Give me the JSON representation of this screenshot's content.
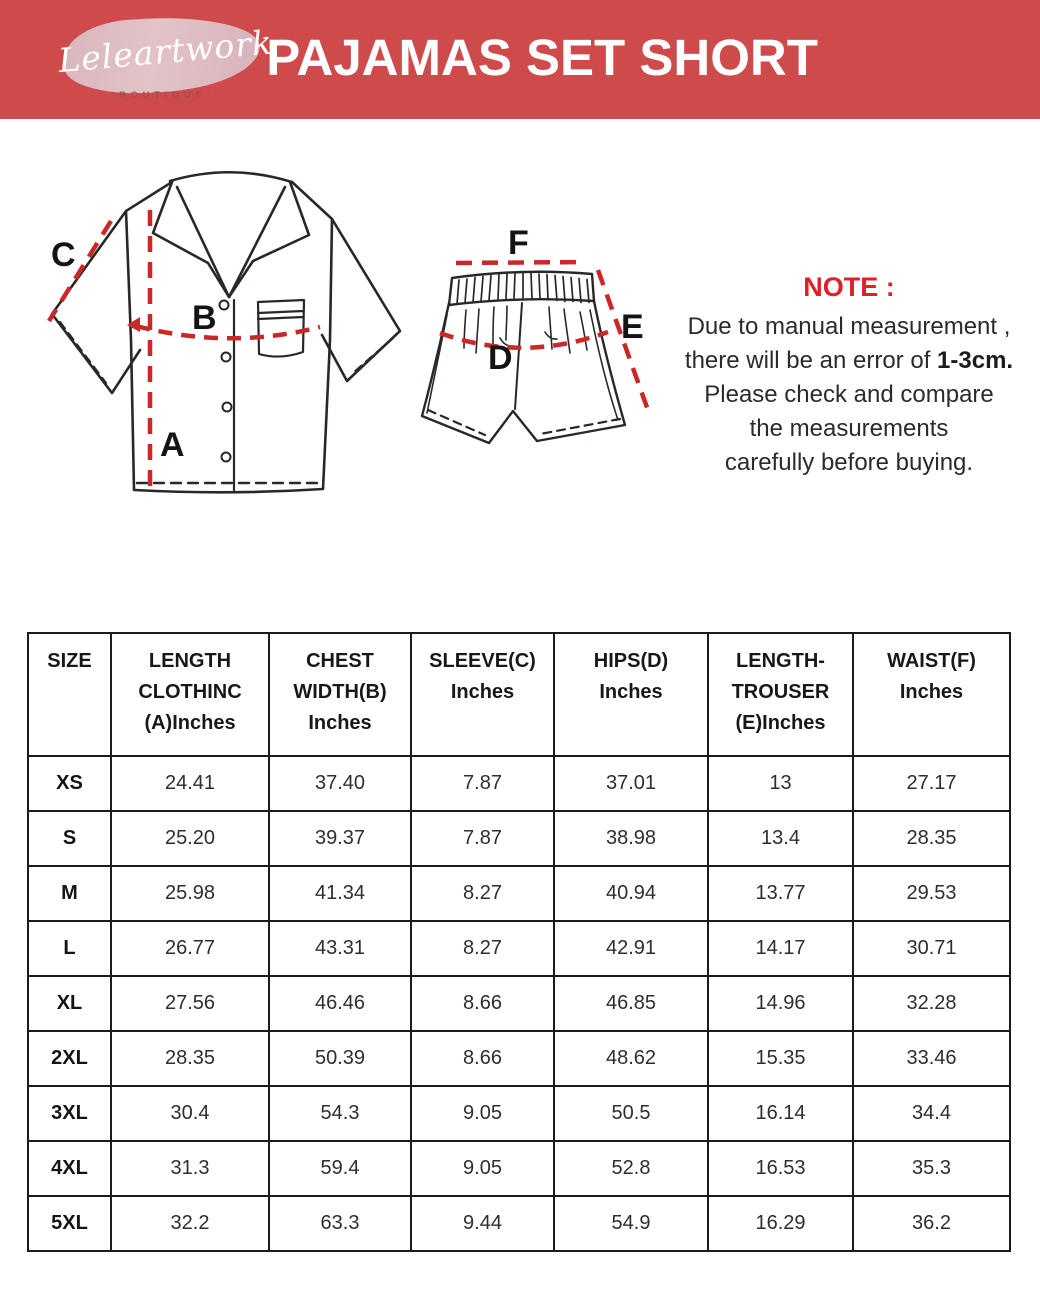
{
  "header": {
    "logo": {
      "name": "Leleartwork",
      "subtitle": "· BOUTIQUE ·"
    },
    "title": "PAJAMAS SET SHORT"
  },
  "colors": {
    "banner_red": "#cf4b4b",
    "note_red": "#e01f26",
    "dash_red": "#cc2727",
    "logo_blob_pink": "#ddc4cb",
    "table_border": "#1b1b1b"
  },
  "diagram": {
    "labels": {
      "A": "A",
      "B": "B",
      "C": "C",
      "D": "D",
      "E": "E",
      "F": "F"
    }
  },
  "note": {
    "heading": "NOTE :",
    "line1": "Due to manual measurement ,",
    "line2_normal": "there will be an error of ",
    "line2_bold": "1-3cm.",
    "line3": "Please check and compare",
    "line4": "the measurements",
    "line5": "carefully before buying."
  },
  "table": {
    "columns": [
      "SIZE",
      "LENGTH\nCLOTHINC\n(A)Inches",
      "CHEST\nWIDTH(B)\nInches",
      "SLEEVE(C)\nInches",
      "HIPS(D)\nInches",
      "LENGTH-\nTROUSER\n(E)Inches",
      "WAIST(F)\nInches"
    ],
    "rows": [
      {
        "size": "XS",
        "values": [
          "24.41",
          "37.40",
          "7.87",
          "37.01",
          "13",
          "27.17"
        ]
      },
      {
        "size": "S",
        "values": [
          "25.20",
          "39.37",
          "7.87",
          "38.98",
          "13.4",
          "28.35"
        ]
      },
      {
        "size": "M",
        "values": [
          "25.98",
          "41.34",
          "8.27",
          "40.94",
          "13.77",
          "29.53"
        ]
      },
      {
        "size": "L",
        "values": [
          "26.77",
          "43.31",
          "8.27",
          "42.91",
          "14.17",
          "30.71"
        ]
      },
      {
        "size": "XL",
        "values": [
          "27.56",
          "46.46",
          "8.66",
          "46.85",
          "14.96",
          "32.28"
        ]
      },
      {
        "size": "2XL",
        "values": [
          "28.35",
          "50.39",
          "8.66",
          "48.62",
          "15.35",
          "33.46"
        ]
      },
      {
        "size": "3XL",
        "values": [
          "30.4",
          "54.3",
          "9.05",
          "50.5",
          "16.14",
          "34.4"
        ]
      },
      {
        "size": "4XL",
        "values": [
          "31.3",
          "59.4",
          "9.05",
          "52.8",
          "16.53",
          "35.3"
        ]
      },
      {
        "size": "5XL",
        "values": [
          "32.2",
          "63.3",
          "9.44",
          "54.9",
          "16.29",
          "36.2"
        ]
      }
    ]
  }
}
